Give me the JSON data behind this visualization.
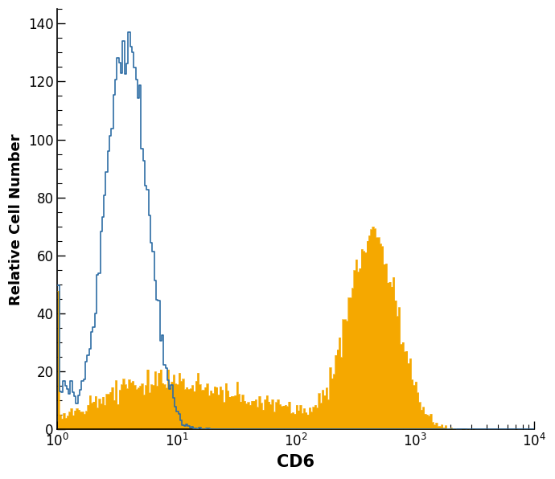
{
  "title": "",
  "xlabel": "CD6",
  "ylabel": "Relative Cell Number",
  "xlim": [
    1,
    10000
  ],
  "ylim": [
    0,
    145
  ],
  "yticks": [
    0,
    20,
    40,
    60,
    80,
    100,
    120,
    140
  ],
  "blue_color": "#2e6da4",
  "orange_color": "#f5a800",
  "background_color": "#ffffff",
  "xlabel_fontsize": 15,
  "ylabel_fontsize": 13,
  "tick_fontsize": 12,
  "n_bins": 256,
  "log_min": 0,
  "log_max": 4,
  "blue_peak_height": 137,
  "orange_high_peak_height": 70,
  "orange_low_plateau": 20,
  "seed": 12345
}
